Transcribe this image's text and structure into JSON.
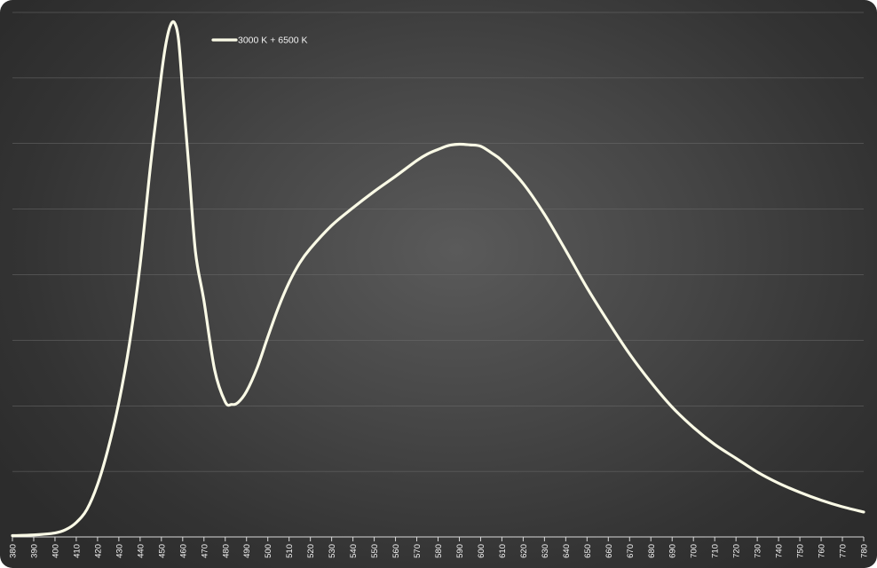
{
  "chart_data": {
    "type": "line",
    "title": "",
    "xlabel": "",
    "ylabel": "",
    "xlim": [
      380,
      780
    ],
    "ylim": [
      0,
      8
    ],
    "x_tick_step": 10,
    "gridlines": [
      1,
      2,
      3,
      4,
      5,
      6,
      7,
      8
    ],
    "grid": true,
    "legend_position": "top-left",
    "series": [
      {
        "name": "3000 K + 6500 K",
        "color": "#fafae6",
        "x": [
          380,
          390,
          400,
          405,
          410,
          415,
          420,
          425,
          430,
          435,
          440,
          445,
          450,
          452,
          454,
          456,
          458,
          460,
          463,
          466,
          470,
          475,
          480,
          483,
          486,
          490,
          495,
          500,
          505,
          510,
          515,
          520,
          530,
          540,
          550,
          560,
          570,
          575,
          580,
          585,
          590,
          595,
          600,
          605,
          610,
          620,
          630,
          640,
          650,
          660,
          670,
          680,
          690,
          700,
          710,
          720,
          730,
          740,
          750,
          760,
          770,
          780
        ],
        "y": [
          0.02,
          0.03,
          0.06,
          0.11,
          0.22,
          0.42,
          0.8,
          1.35,
          2.05,
          2.95,
          4.15,
          5.7,
          7.05,
          7.5,
          7.78,
          7.85,
          7.6,
          6.8,
          5.6,
          4.35,
          3.6,
          2.55,
          2.06,
          2.02,
          2.05,
          2.22,
          2.58,
          3.05,
          3.5,
          3.88,
          4.18,
          4.4,
          4.75,
          5.02,
          5.27,
          5.5,
          5.74,
          5.84,
          5.91,
          5.97,
          5.99,
          5.98,
          5.96,
          5.86,
          5.74,
          5.39,
          4.92,
          4.37,
          3.8,
          3.28,
          2.79,
          2.36,
          1.98,
          1.67,
          1.41,
          1.2,
          0.99,
          0.82,
          0.68,
          0.56,
          0.46,
          0.38
        ]
      }
    ]
  }
}
